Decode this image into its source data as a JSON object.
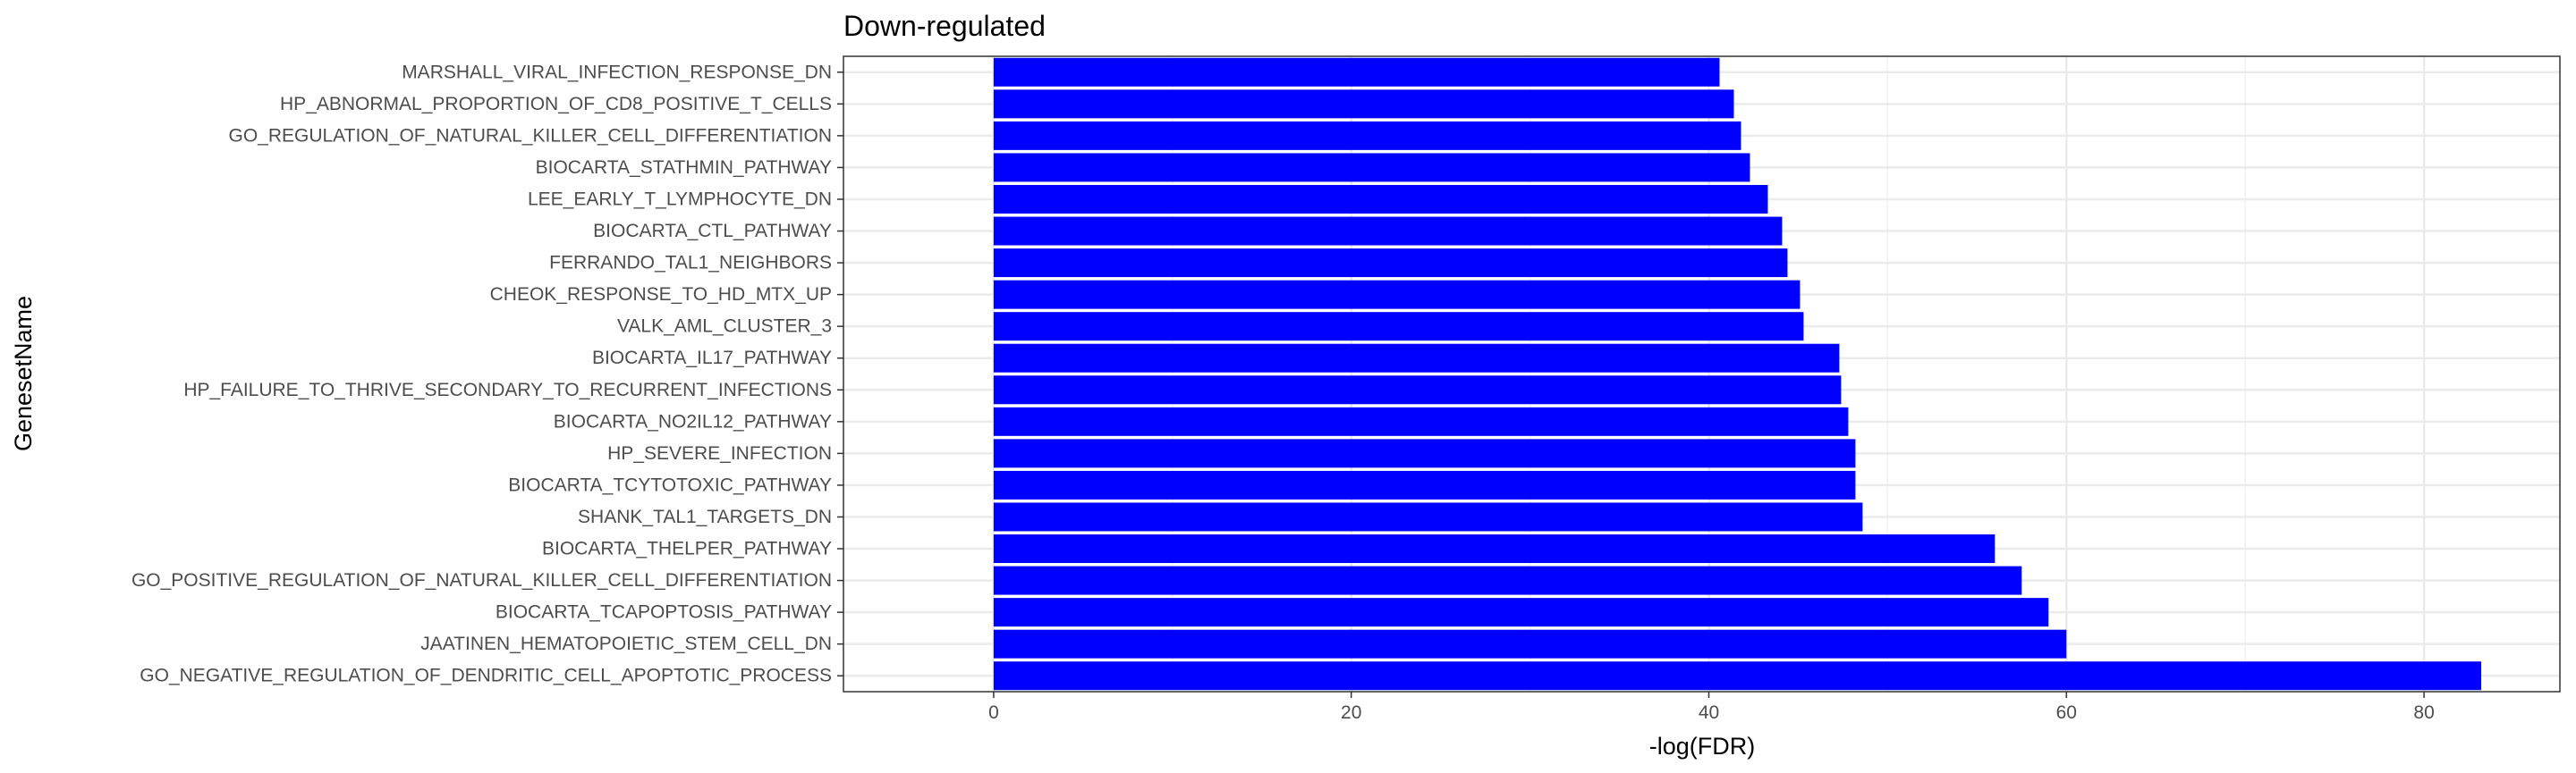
{
  "chart_data": {
    "type": "bar",
    "orientation": "horizontal",
    "title": "Down-regulated",
    "xlabel": "-log(FDR)",
    "ylabel": "GenesetName",
    "xlim": [
      -8.4,
      87.6
    ],
    "xticks": [
      0,
      20,
      40,
      60,
      80
    ],
    "grid": true,
    "bar_color": "#0000ff",
    "categories": [
      "MARSHALL_VIRAL_INFECTION_RESPONSE_DN",
      "HP_ABNORMAL_PROPORTION_OF_CD8_POSITIVE_T_CELLS",
      "GO_REGULATION_OF_NATURAL_KILLER_CELL_DIFFERENTIATION",
      "BIOCARTA_STATHMIN_PATHWAY",
      "LEE_EARLY_T_LYMPHOCYTE_DN",
      "BIOCARTA_CTL_PATHWAY",
      "FERRANDO_TAL1_NEIGHBORS",
      "CHEOK_RESPONSE_TO_HD_MTX_UP",
      "VALK_AML_CLUSTER_3",
      "BIOCARTA_IL17_PATHWAY",
      "HP_FAILURE_TO_THRIVE_SECONDARY_TO_RECURRENT_INFECTIONS",
      "BIOCARTA_NO2IL12_PATHWAY",
      "HP_SEVERE_INFECTION",
      "BIOCARTA_TCYTOTOXIC_PATHWAY",
      "SHANK_TAL1_TARGETS_DN",
      "BIOCARTA_THELPER_PATHWAY",
      "GO_POSITIVE_REGULATION_OF_NATURAL_KILLER_CELL_DIFFERENTIATION",
      "BIOCARTA_TCAPOPTOSIS_PATHWAY",
      "JAATINEN_HEMATOPOIETIC_STEM_CELL_DN",
      "GO_NEGATIVE_REGULATION_OF_DENDRITIC_CELL_APOPTOTIC_PROCESS"
    ],
    "values": [
      40.6,
      41.4,
      41.8,
      42.3,
      43.3,
      44.1,
      44.4,
      45.1,
      45.3,
      47.3,
      47.4,
      47.8,
      48.2,
      48.2,
      48.6,
      56.0,
      57.5,
      59.0,
      60.0,
      83.2
    ]
  }
}
